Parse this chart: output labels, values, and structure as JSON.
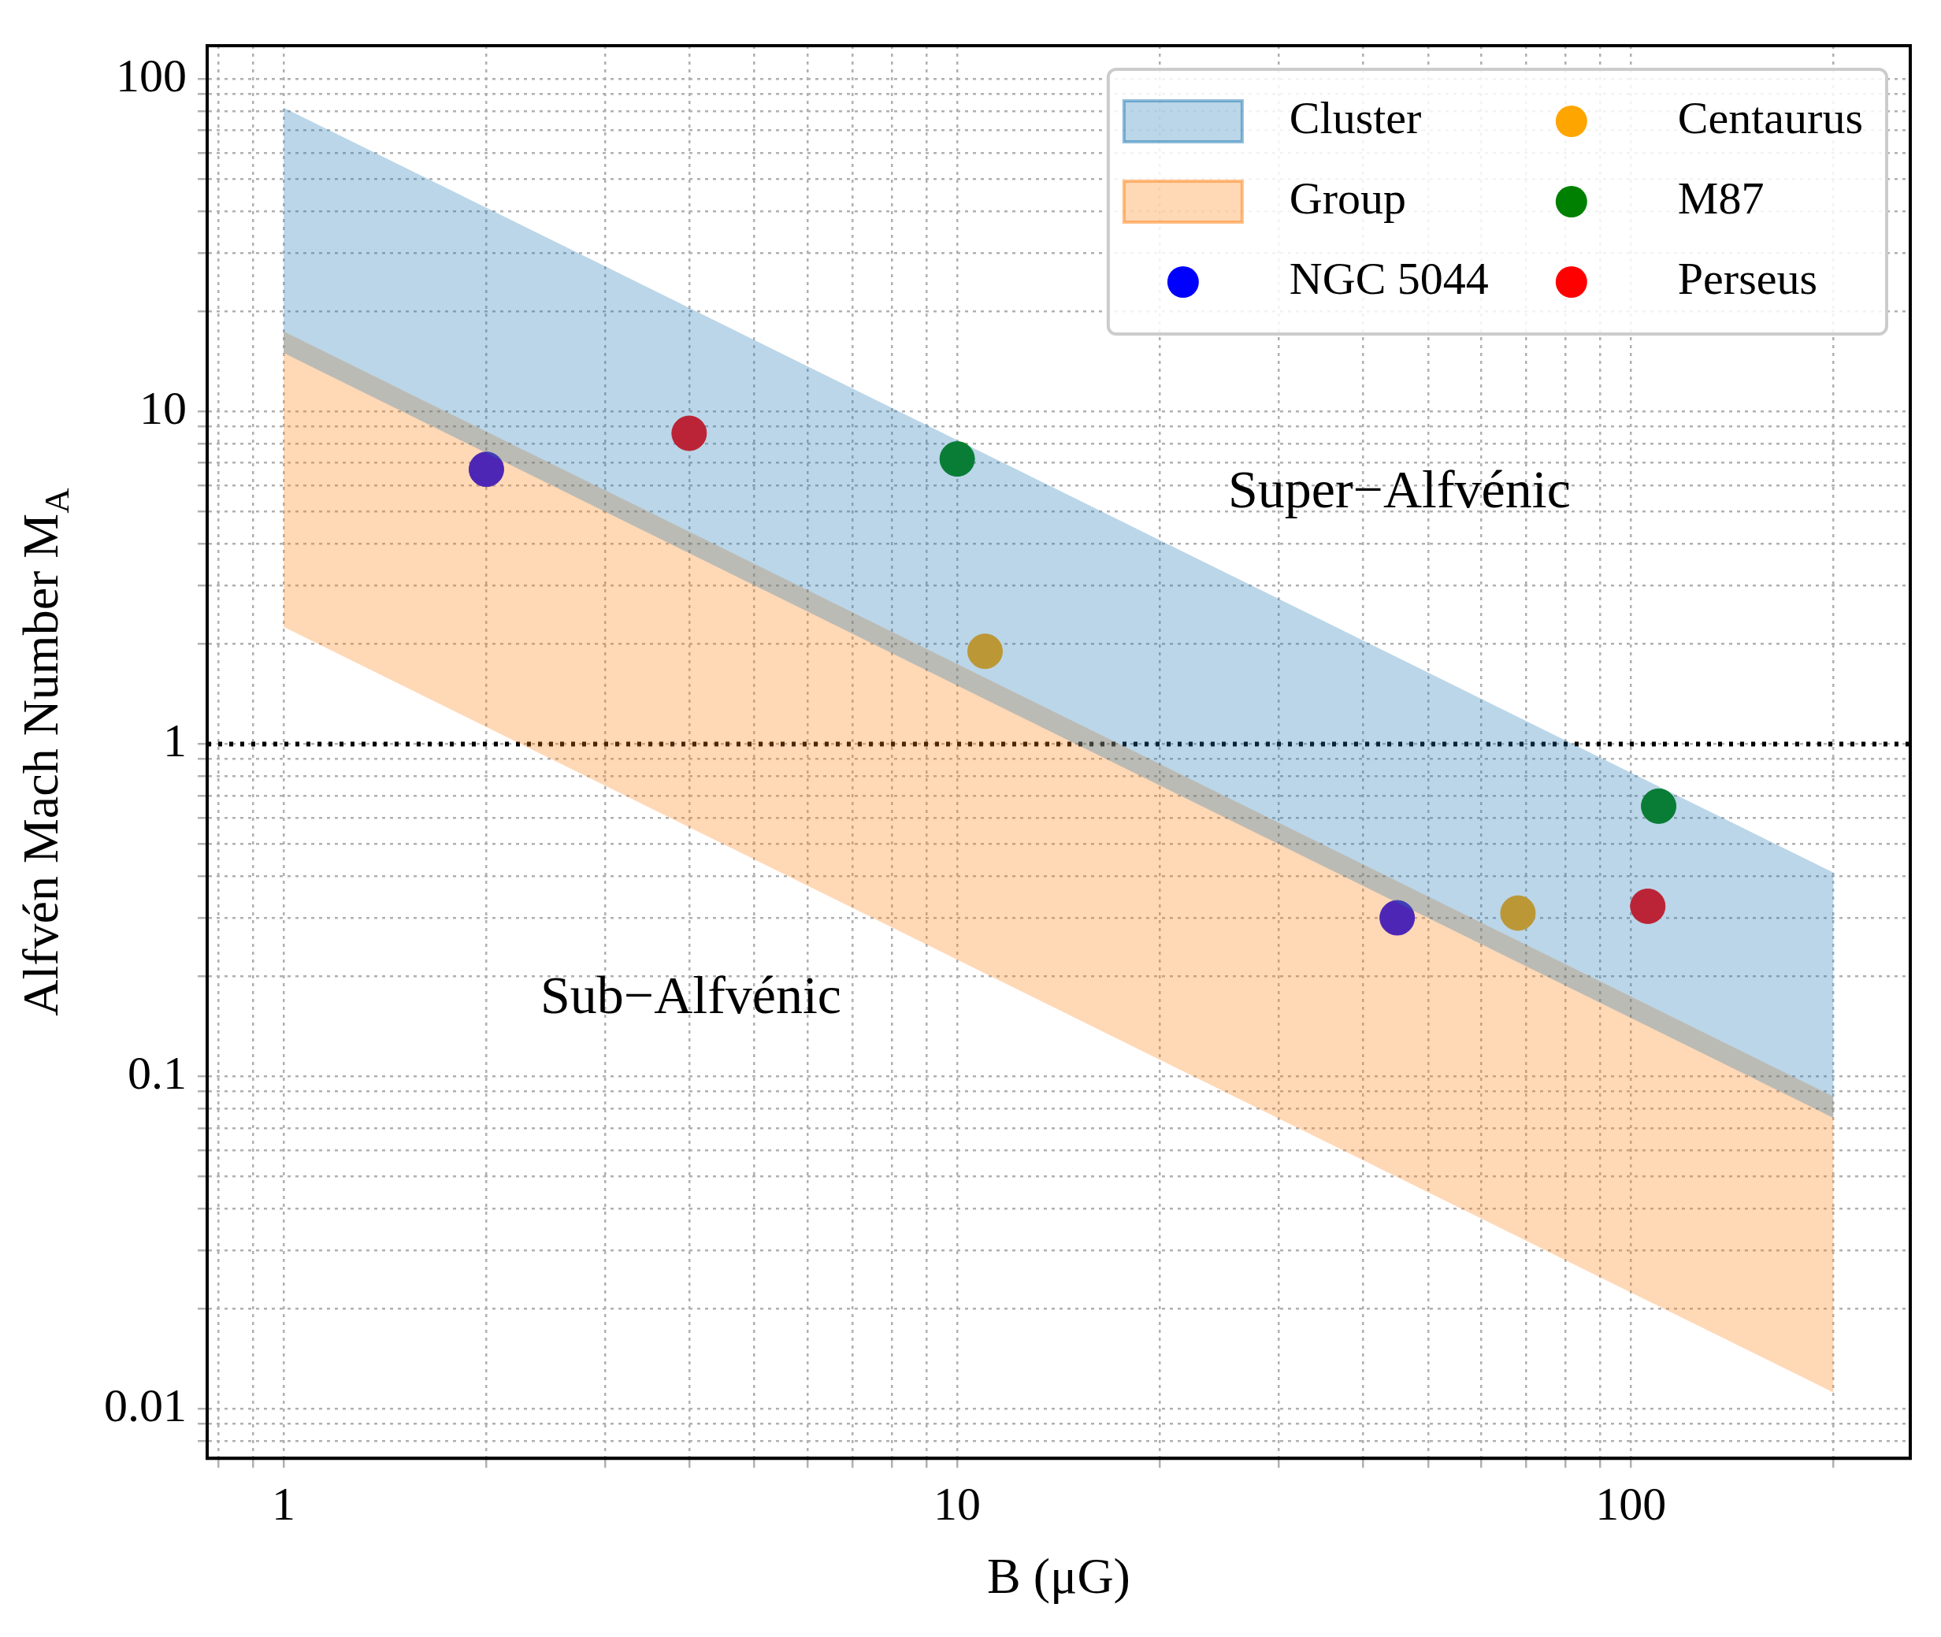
{
  "chart_data": {
    "type": "scatter",
    "xlabel": "B (μG)",
    "ylabel": "Alfvén Mach Number M$_{A}$",
    "log": "xy",
    "grid": true,
    "legend": "top right",
    "xlim": [
      0.77,
      260
    ],
    "ylim": [
      0.0071,
      126
    ],
    "xticks": [
      {
        "value": 0.8,
        "label": null
      },
      {
        "value": 0.9,
        "label": null
      },
      1,
      {
        "value": 2,
        "label": null
      },
      {
        "value": 3,
        "label": null
      },
      {
        "value": 4,
        "label": null
      },
      {
        "value": 5,
        "label": null
      },
      {
        "value": 6,
        "label": null
      },
      {
        "value": 7,
        "label": null
      },
      {
        "value": 8,
        "label": null
      },
      {
        "value": 9,
        "label": null
      },
      10,
      {
        "value": 20,
        "label": null
      },
      {
        "value": 30,
        "label": null
      },
      {
        "value": 40,
        "label": null
      },
      {
        "value": 50,
        "label": null
      },
      {
        "value": 60,
        "label": null
      },
      {
        "value": 70,
        "label": null
      },
      {
        "value": 80,
        "label": null
      },
      {
        "value": 90,
        "label": null
      },
      100,
      {
        "value": 200,
        "label": null
      }
    ],
    "yticks": [
      {
        "value": 0.008,
        "label": null
      },
      {
        "value": 0.009,
        "label": null
      },
      0.01,
      {
        "value": 0.02,
        "label": null
      },
      {
        "value": 0.03,
        "label": null
      },
      {
        "value": 0.04,
        "label": null
      },
      {
        "value": 0.05,
        "label": null
      },
      {
        "value": 0.06,
        "label": null
      },
      {
        "value": 0.07,
        "label": null
      },
      {
        "value": 0.08,
        "label": null
      },
      {
        "value": 0.09,
        "label": null
      },
      0.1,
      {
        "value": 0.2,
        "label": null
      },
      {
        "value": 0.3,
        "label": null
      },
      {
        "value": 0.4,
        "label": null
      },
      {
        "value": 0.5,
        "label": null
      },
      {
        "value": 0.6,
        "label": null
      },
      {
        "value": 0.7,
        "label": null
      },
      {
        "value": 0.8,
        "label": null
      },
      {
        "value": 0.9,
        "label": null
      },
      1,
      {
        "value": 2,
        "label": null
      },
      {
        "value": 3,
        "label": null
      },
      {
        "value": 4,
        "label": null
      },
      {
        "value": 5,
        "label": null
      },
      {
        "value": 6,
        "label": null
      },
      {
        "value": 7,
        "label": null
      },
      {
        "value": 8,
        "label": null
      },
      {
        "value": 9,
        "label": null
      },
      10,
      {
        "value": 20,
        "label": null
      },
      {
        "value": 30,
        "label": null
      },
      {
        "value": 40,
        "label": null
      },
      {
        "value": 50,
        "label": null
      },
      {
        "value": 60,
        "label": null
      },
      {
        "value": 70,
        "label": null
      },
      {
        "value": 80,
        "label": null
      },
      {
        "value": 90,
        "label": null
      },
      100
    ],
    "series": [
      {
        "name": "Cluster",
        "type": "area",
        "color": "#1f77b4",
        "x": [
          1,
          200
        ],
        "values": [
          null,
          null
        ],
        "lower": [
          15,
          0.075
        ],
        "upper": [
          82,
          0.41
        ]
      },
      {
        "name": "Group",
        "type": "area",
        "color": "#ff7f0e",
        "x": [
          1,
          200
        ],
        "values": [
          null,
          null
        ],
        "lower": [
          2.25,
          0.0112
        ],
        "upper": [
          17.4,
          0.087
        ]
      },
      {
        "name": "NGC 5044",
        "type": "scatter",
        "marker": "circle",
        "color": "#0000ff",
        "x": [
          2,
          45
        ],
        "values": [
          6.7,
          0.3
        ]
      },
      {
        "name": "Centaurus",
        "type": "scatter",
        "marker": "circle",
        "color": "#ffa500",
        "x": [
          11,
          68
        ],
        "values": [
          1.9,
          0.31
        ]
      },
      {
        "name": "M87",
        "type": "scatter",
        "marker": "circle",
        "color": "#008000",
        "x": [
          10,
          110
        ],
        "values": [
          7.2,
          0.65
        ]
      },
      {
        "name": "Perseus",
        "type": "scatter",
        "marker": "circle",
        "color": "#ff0000",
        "x": [
          4,
          106
        ],
        "values": [
          8.6,
          0.325
        ]
      }
    ],
    "ref_lines": [
      {
        "axis": "y",
        "value": 1,
        "color": "#000000",
        "line_style": "dotted"
      }
    ],
    "annotations": [
      "Super−Alfvénic",
      "Sub−Alfvénic"
    ]
  }
}
